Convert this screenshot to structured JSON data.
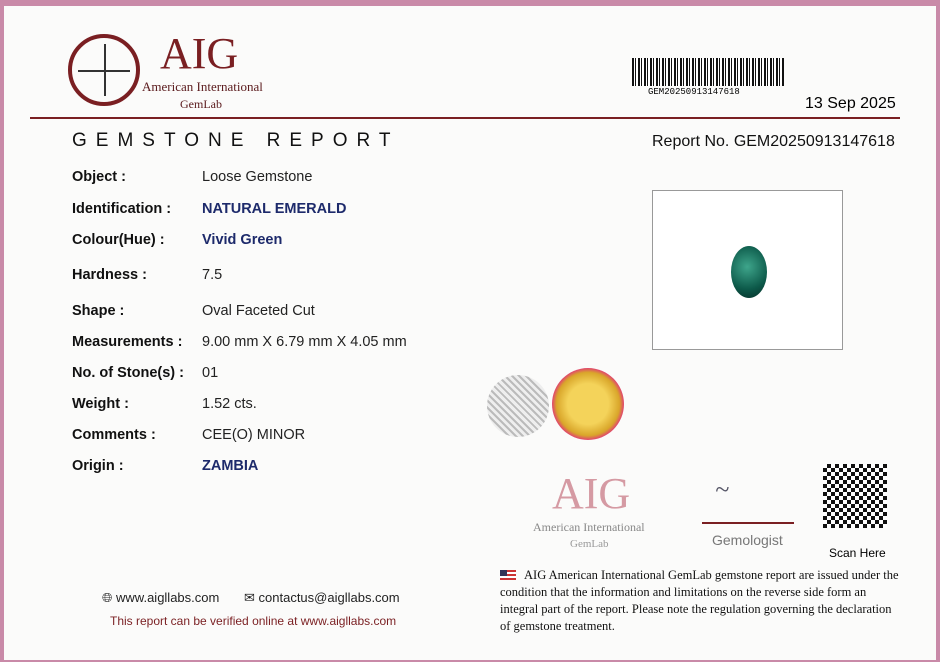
{
  "header": {
    "logo_text": "AIG",
    "logo_sub1": "American International",
    "logo_sub2": "GemLab",
    "barcode_text": "GEM20250913147618",
    "date": "13 Sep 2025",
    "title": "GEMSTONE REPORT",
    "report_no": "Report No. GEM20250913147618"
  },
  "fields": [
    {
      "label": "Object :",
      "value": "Loose Gemstone",
      "emphasis": false
    },
    {
      "label": "Identification :",
      "value": "NATURAL EMERALD",
      "emphasis": true
    },
    {
      "label": "Colour(Hue) :",
      "value": "Vivid Green",
      "emphasis": true
    },
    {
      "label": "Hardness :",
      "value": "7.5",
      "emphasis": false
    },
    {
      "label": "Shape :",
      "value": "Oval Faceted Cut",
      "emphasis": false
    },
    {
      "label": "Measurements :",
      "value": "9.00 mm X 6.79 mm X 4.05 mm",
      "emphasis": false
    },
    {
      "label": "No. of Stone(s) :",
      "value": "01",
      "emphasis": false
    },
    {
      "label": "Weight :",
      "value": "1.52 cts.",
      "emphasis": false
    },
    {
      "label": "Comments :",
      "value": "CEE(O) MINOR",
      "emphasis": false
    },
    {
      "label": "Origin :",
      "value": "ZAMBIA",
      "emphasis": true
    }
  ],
  "signature": {
    "stamp_logo": "AIG",
    "stamp_sub1": "American International",
    "stamp_sub2": "GemLab",
    "role": "Gemologist",
    "qr_label": "Scan Here"
  },
  "footer": {
    "website": "www.aigllabs.com",
    "email": "contactus@aigllabs.com",
    "verify": "This report can be verified online at www.aigllabs.com",
    "disclaimer": "AIG American International GemLab gemstone report are issued under the condition that the information and limitations on the reverse side form an integral part of the report. Please note the regulation governing the declaration of gemstone treatment."
  },
  "colors": {
    "brand": "#7a1f22",
    "value_blue": "#1d2a6b",
    "emerald": "#0d5a4a"
  }
}
